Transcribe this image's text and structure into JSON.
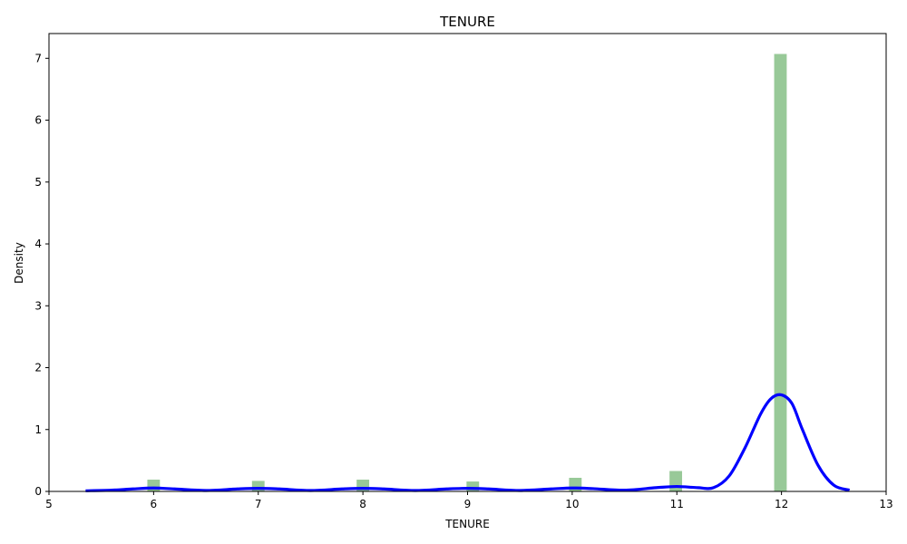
{
  "chart_data": {
    "type": "bar",
    "title": "TENURE",
    "xlabel": "TENURE",
    "ylabel": "Density",
    "xlim": [
      5,
      13
    ],
    "ylim": [
      0,
      7.4
    ],
    "x_ticks": [
      "5",
      "6",
      "7",
      "8",
      "9",
      "10",
      "11",
      "12",
      "13"
    ],
    "y_ticks": [
      "0",
      "1",
      "2",
      "3",
      "4",
      "5",
      "6",
      "7"
    ],
    "grid": false,
    "legend": "none",
    "histogram": {
      "color": "#98c998",
      "bin_width": 0.12,
      "bins": [
        {
          "x": 6.0,
          "density": 0.19
        },
        {
          "x": 7.0,
          "density": 0.17
        },
        {
          "x": 8.0,
          "density": 0.19
        },
        {
          "x": 9.05,
          "density": 0.16
        },
        {
          "x": 10.03,
          "density": 0.22
        },
        {
          "x": 10.99,
          "density": 0.33
        },
        {
          "x": 11.99,
          "density": 7.07
        }
      ]
    },
    "kde": {
      "color": "#0000ff",
      "x": [
        5.35,
        5.6,
        5.8,
        6.0,
        6.2,
        6.5,
        6.8,
        7.0,
        7.2,
        7.5,
        7.8,
        8.0,
        8.2,
        8.5,
        8.8,
        9.0,
        9.2,
        9.5,
        9.8,
        10.0,
        10.2,
        10.5,
        10.8,
        11.0,
        11.2,
        11.35,
        11.5,
        11.65,
        11.8,
        11.9,
        12.0,
        12.1,
        12.2,
        12.35,
        12.5,
        12.65
      ],
      "y": [
        0.01,
        0.02,
        0.04,
        0.055,
        0.04,
        0.015,
        0.04,
        0.05,
        0.04,
        0.015,
        0.04,
        0.05,
        0.04,
        0.015,
        0.04,
        0.05,
        0.04,
        0.015,
        0.04,
        0.055,
        0.045,
        0.02,
        0.06,
        0.08,
        0.06,
        0.06,
        0.25,
        0.7,
        1.25,
        1.5,
        1.56,
        1.42,
        1.0,
        0.42,
        0.1,
        0.02
      ]
    }
  }
}
